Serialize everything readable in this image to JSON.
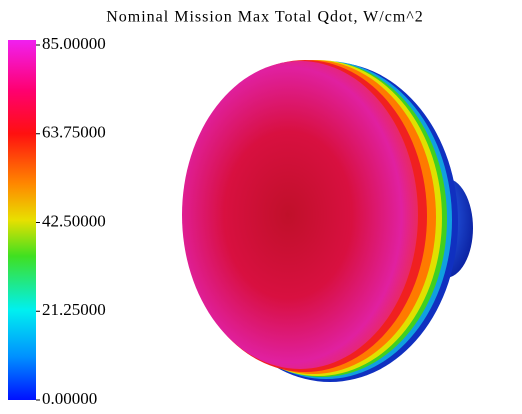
{
  "title": "Nominal Mission Max Total Qdot, W/cm^2",
  "colorbar": {
    "lim": [
      0,
      85
    ],
    "ticks": [
      {
        "value": 85,
        "label": "85.00000"
      },
      {
        "value": 63.75,
        "label": "63.75000"
      },
      {
        "value": 42.5,
        "label": "42.50000"
      },
      {
        "value": 21.25,
        "label": "21.25000"
      },
      {
        "value": 0,
        "label": "0.00000"
      }
    ]
  }
}
